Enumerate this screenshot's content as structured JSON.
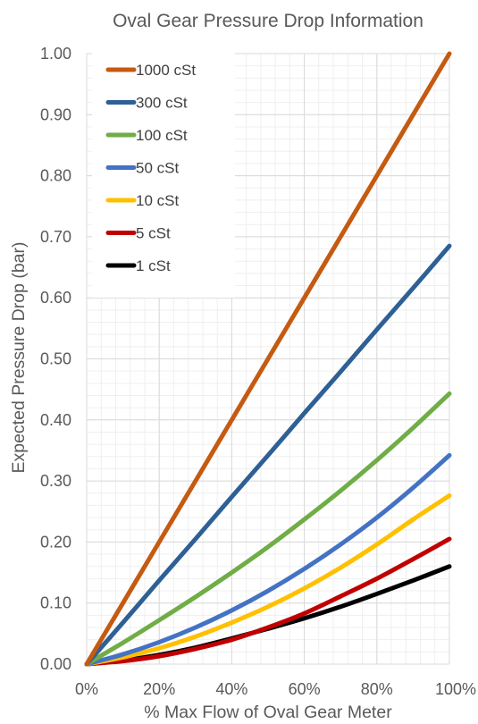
{
  "chart_data": {
    "type": "line",
    "title": "Oval Gear Pressure Drop Information",
    "xlabel": "% Max Flow of Oval Gear Meter",
    "ylabel": "Expected Pressure Drop (bar)",
    "xlim": [
      0,
      100
    ],
    "ylim": [
      0,
      1.0
    ],
    "x_ticks": [
      "0%",
      "20%",
      "40%",
      "60%",
      "80%",
      "100%"
    ],
    "y_ticks": [
      "0.00",
      "0.10",
      "0.20",
      "0.30",
      "0.40",
      "0.50",
      "0.60",
      "0.70",
      "0.80",
      "0.90",
      "1.00"
    ],
    "grid": true,
    "minor_grid": true,
    "legend_position": "top-left",
    "x": [
      0,
      10,
      20,
      30,
      40,
      50,
      60,
      70,
      80,
      90,
      100
    ],
    "series": [
      {
        "name": "1000 cSt",
        "color": "#C55A11",
        "values": [
          0.0,
          0.1,
          0.2,
          0.3,
          0.4,
          0.5,
          0.6,
          0.7,
          0.8,
          0.9,
          1.0
        ]
      },
      {
        "name": "300 cSt",
        "color": "#2E6096",
        "values": [
          0.0,
          0.068,
          0.137,
          0.205,
          0.274,
          0.342,
          0.411,
          0.479,
          0.548,
          0.616,
          0.685
        ]
      },
      {
        "name": "100 cSt",
        "color": "#70AD47",
        "values": [
          0.0,
          0.035,
          0.072,
          0.11,
          0.15,
          0.192,
          0.237,
          0.284,
          0.334,
          0.387,
          0.443
        ]
      },
      {
        "name": "50 cSt",
        "color": "#4472C4",
        "values": [
          0.0,
          0.016,
          0.036,
          0.06,
          0.088,
          0.12,
          0.156,
          0.196,
          0.24,
          0.289,
          0.342
        ]
      },
      {
        "name": "10 cSt",
        "color": "#FFC000",
        "values": [
          0.0,
          0.011,
          0.026,
          0.045,
          0.068,
          0.094,
          0.124,
          0.158,
          0.196,
          0.237,
          0.276
        ]
      },
      {
        "name": "5 cSt",
        "color": "#C00000",
        "values": [
          0.0,
          0.005,
          0.013,
          0.025,
          0.04,
          0.06,
          0.083,
          0.111,
          0.14,
          0.172,
          0.205
        ]
      },
      {
        "name": "1 cSt",
        "color": "#000000",
        "values": [
          0.0,
          0.006,
          0.015,
          0.027,
          0.042,
          0.058,
          0.075,
          0.094,
          0.115,
          0.137,
          0.16
        ]
      }
    ]
  }
}
